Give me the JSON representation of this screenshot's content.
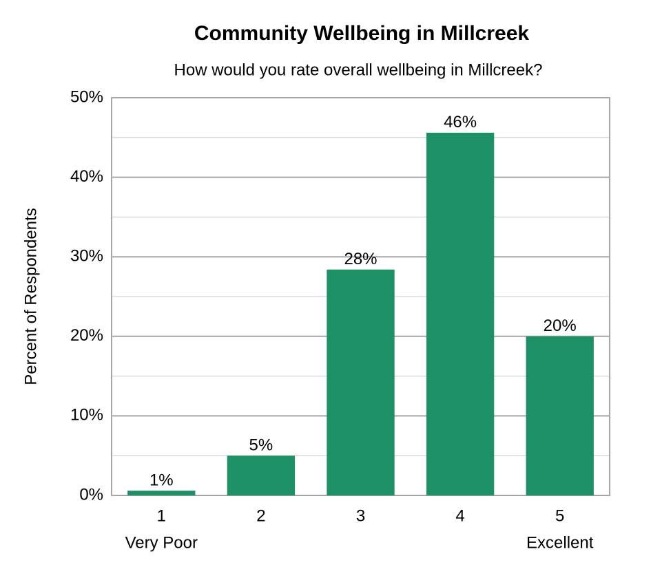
{
  "chart_data": {
    "type": "bar",
    "title": "Community Wellbeing in Millcreek",
    "subtitle": "How would you rate overall wellbeing in Millcreek?",
    "y_label": "Percent of Respondents",
    "categories": [
      "1",
      "2",
      "3",
      "4",
      "5"
    ],
    "category_sublabels": [
      "Very Poor",
      null,
      null,
      null,
      "Excellent"
    ],
    "values": [
      0.6,
      5,
      28.4,
      45.6,
      20
    ],
    "value_labels": [
      "1%",
      "5%",
      "28%",
      "46%",
      "20%"
    ],
    "color": "#1e9066",
    "ylim": [
      0,
      50
    ],
    "yticks": [
      {
        "value": 0,
        "label": "0%"
      },
      {
        "value": 10,
        "label": "10%"
      },
      {
        "value": 20,
        "label": "20%"
      },
      {
        "value": 30,
        "label": "30%"
      },
      {
        "value": 40,
        "label": "40%"
      },
      {
        "value": 50,
        "label": "50%"
      }
    ],
    "minor_yticks": [
      5,
      15,
      25,
      35,
      45
    ],
    "grid": true
  }
}
